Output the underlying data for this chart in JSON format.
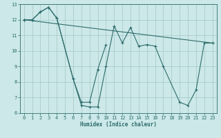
{
  "xlabel": "Humidex (Indice chaleur)",
  "bg_color": "#cce8e8",
  "grid_color": "#aacccc",
  "line_color": "#2d6b6b",
  "xlim": [
    -0.5,
    23.5
  ],
  "ylim": [
    6,
    13
  ],
  "xticks": [
    0,
    1,
    2,
    3,
    4,
    5,
    6,
    7,
    8,
    9,
    10,
    11,
    12,
    13,
    14,
    15,
    16,
    17,
    18,
    19,
    20,
    21,
    22,
    23
  ],
  "yticks": [
    6,
    7,
    8,
    9,
    10,
    11,
    12,
    13
  ],
  "curves": [
    {
      "x": [
        0,
        1,
        2,
        3,
        4,
        6,
        7,
        8,
        9,
        10,
        11,
        12,
        13,
        14,
        15,
        16,
        17,
        19,
        20,
        21,
        22,
        23
      ],
      "y": [
        12.0,
        12.0,
        12.5,
        12.8,
        12.1,
        8.2,
        6.5,
        6.4,
        6.4,
        9.0,
        11.6,
        10.5,
        11.5,
        10.3,
        10.4,
        10.3,
        9.0,
        6.7,
        6.5,
        7.5,
        10.5,
        10.5
      ]
    },
    {
      "x": [
        0,
        1,
        2,
        3,
        4,
        6,
        7,
        8,
        9,
        10
      ],
      "y": [
        12.0,
        12.0,
        12.5,
        12.8,
        12.1,
        8.2,
        6.7,
        6.7,
        8.8,
        10.4
      ]
    },
    {
      "x": [
        0,
        23
      ],
      "y": [
        12.0,
        10.5
      ]
    }
  ]
}
